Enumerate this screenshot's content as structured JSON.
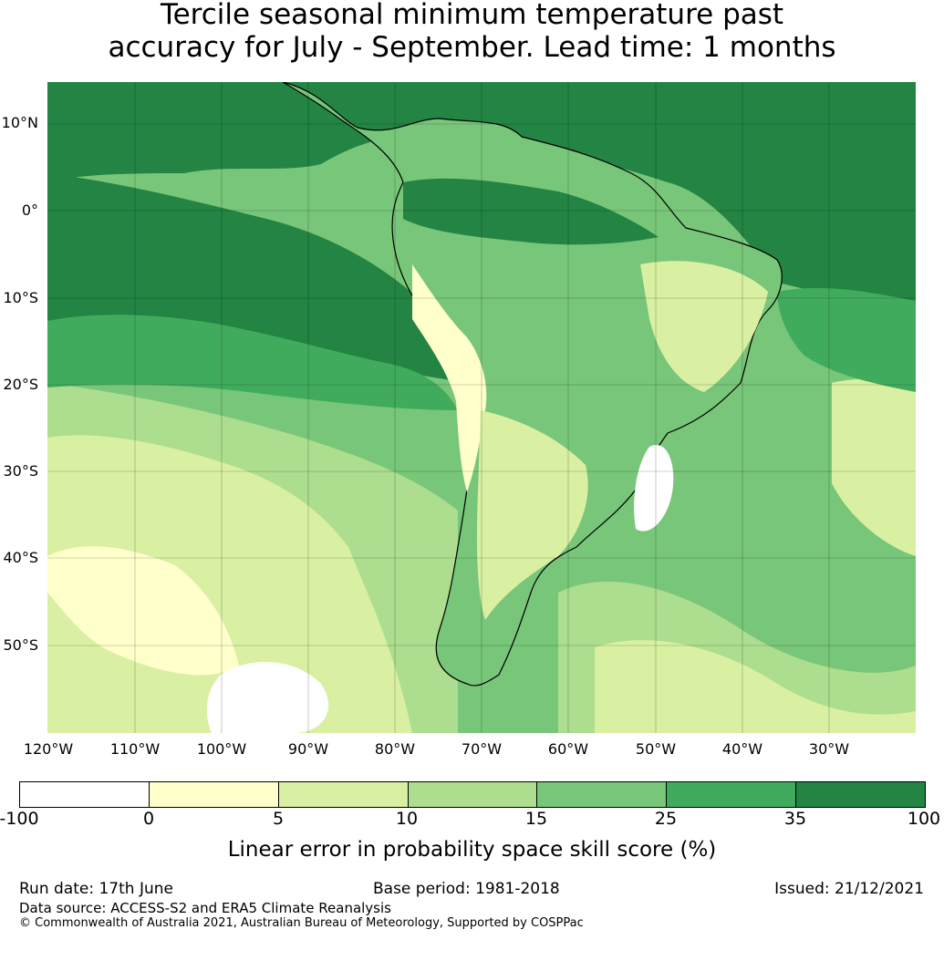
{
  "title_line1": "Tercile seasonal minimum temperature past",
  "title_line2": "accuracy for July - September. Lead time: 1 months",
  "lat_ticks": [
    "10°N",
    "0°",
    "10°S",
    "20°S",
    "30°S",
    "40°S",
    "50°S"
  ],
  "lon_ticks": [
    "120°W",
    "110°W",
    "100°W",
    "90°W",
    "80°W",
    "70°W",
    "60°W",
    "50°W",
    "40°W",
    "30°W"
  ],
  "colorbar": {
    "colors": [
      "#ffffff",
      "#ffffcc",
      "#d9f0a3",
      "#addd8e",
      "#78c679",
      "#41ab5d",
      "#238443"
    ],
    "ticks": [
      "-100",
      "0",
      "5",
      "10",
      "15",
      "25",
      "35",
      "100"
    ],
    "label": "Linear error in probability space skill score (%)"
  },
  "footer": {
    "run_date": "Run date: 17th June",
    "base_period": "Base period: 1981-2018",
    "issued": "Issued: 21/12/2021",
    "data_source": "Data source: ACCESS-S2 and ERA5 Climate Reanalysis",
    "copyright": "© Commonwealth of Australia 2021, Australian Bureau of Meteorology, Supported by COSPPac"
  }
}
